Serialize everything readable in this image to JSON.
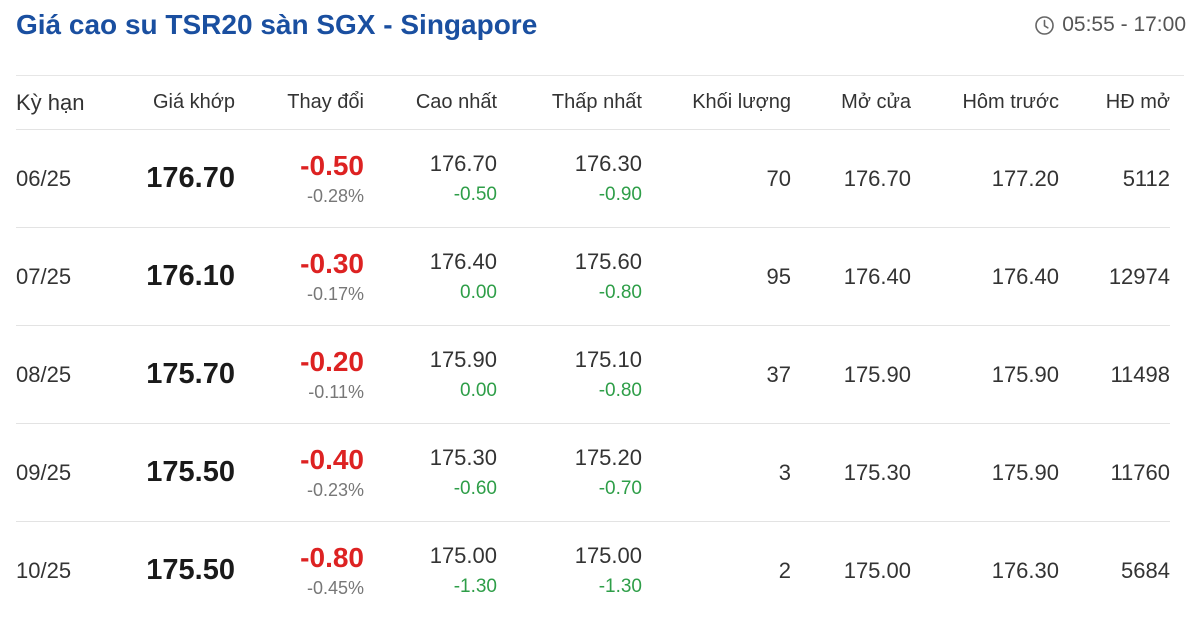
{
  "header": {
    "title": "Giá cao su TSR20 sàn SGX - Singapore",
    "trading_hours": "05:55 - 17:00",
    "clock_icon": "clock-icon"
  },
  "colors": {
    "title": "#1a4fa0",
    "down": "#dd2222",
    "sub_change": "#2e9e48"
  },
  "columns": [
    "Kỳ hạn",
    "Giá khớp",
    "Thay đổi",
    "Cao nhất",
    "Thấp nhất",
    "Khối lượng",
    "Mở cửa",
    "Hôm trước",
    "HĐ mở"
  ],
  "rows": [
    {
      "term": "06/25",
      "price": "176.70",
      "change": "-0.50",
      "change_pct": "-0.28%",
      "high": "176.70",
      "high_chg": "-0.50",
      "low": "176.30",
      "low_chg": "-0.90",
      "volume": "70",
      "open": "176.70",
      "prev": "177.20",
      "oi": "5112"
    },
    {
      "term": "07/25",
      "price": "176.10",
      "change": "-0.30",
      "change_pct": "-0.17%",
      "high": "176.40",
      "high_chg": "0.00",
      "low": "175.60",
      "low_chg": "-0.80",
      "volume": "95",
      "open": "176.40",
      "prev": "176.40",
      "oi": "12974"
    },
    {
      "term": "08/25",
      "price": "175.70",
      "change": "-0.20",
      "change_pct": "-0.11%",
      "high": "175.90",
      "high_chg": "0.00",
      "low": "175.10",
      "low_chg": "-0.80",
      "volume": "37",
      "open": "175.90",
      "prev": "175.90",
      "oi": "11498"
    },
    {
      "term": "09/25",
      "price": "175.50",
      "change": "-0.40",
      "change_pct": "-0.23%",
      "high": "175.30",
      "high_chg": "-0.60",
      "low": "175.20",
      "low_chg": "-0.70",
      "volume": "3",
      "open": "175.30",
      "prev": "175.90",
      "oi": "11760"
    },
    {
      "term": "10/25",
      "price": "175.50",
      "change": "-0.80",
      "change_pct": "-0.45%",
      "high": "175.00",
      "high_chg": "-1.30",
      "low": "175.00",
      "low_chg": "-1.30",
      "volume": "2",
      "open": "175.00",
      "prev": "176.30",
      "oi": "5684"
    }
  ]
}
